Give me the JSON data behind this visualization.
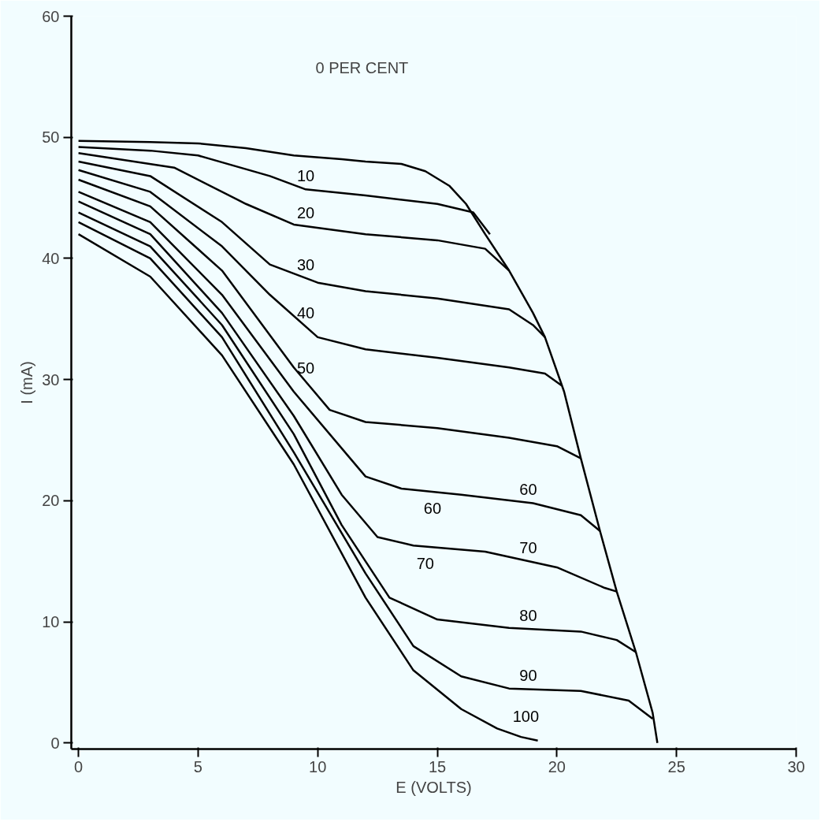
{
  "chart_data": {
    "type": "line",
    "xlabel": "E (VOLTS)",
    "ylabel": "I (mA)",
    "xlim": [
      -0.3,
      30
    ],
    "ylim": [
      -0.5,
      60
    ],
    "xticks": [
      0,
      5,
      10,
      15,
      20,
      25,
      30
    ],
    "yticks": [
      0,
      10,
      20,
      30,
      40,
      50,
      60
    ],
    "grid": false,
    "marker": "none",
    "line_style": "solid",
    "series": [
      {
        "color": "#000000",
        "x": [
          0,
          3,
          5,
          7,
          9,
          11,
          12,
          13.5,
          14.5,
          15.5,
          16.2,
          17,
          18,
          19,
          19.5,
          20.3,
          21,
          21.8,
          22.5,
          23.3,
          24,
          24.2
        ],
        "values": [
          49.7,
          49.6,
          49.5,
          49.1,
          48.5,
          48.2,
          48,
          47.8,
          47.2,
          46,
          44.5,
          42,
          39,
          35.5,
          33.5,
          29,
          23.5,
          17.5,
          12.5,
          7.5,
          2.5,
          0
        ]
      },
      {
        "name": "10",
        "color": "#000000",
        "x": [
          0,
          3,
          5,
          8,
          9.5,
          12,
          15,
          16.5,
          17.2
        ],
        "values": [
          49.2,
          48.9,
          48.5,
          46.8,
          45.7,
          45.2,
          44.5,
          43.8,
          42
        ]
      },
      {
        "name": "20",
        "color": "#000000",
        "x": [
          0,
          4,
          7,
          9,
          12,
          15,
          17,
          18
        ],
        "values": [
          48.7,
          47.5,
          44.5,
          42.8,
          42,
          41.5,
          40.8,
          39
        ]
      },
      {
        "name": "30",
        "color": "#000000",
        "x": [
          0,
          3,
          6,
          8,
          10,
          12,
          15,
          18,
          19,
          19.5
        ],
        "values": [
          48,
          46.8,
          43,
          39.5,
          38,
          37.3,
          36.7,
          35.8,
          34.5,
          33.5
        ]
      },
      {
        "name": "40",
        "color": "#000000",
        "x": [
          0,
          3,
          6,
          8,
          10,
          12,
          15,
          18,
          19.5,
          20.2
        ],
        "values": [
          47.3,
          45.5,
          41,
          37,
          33.5,
          32.5,
          31.8,
          31,
          30.5,
          29.5
        ]
      },
      {
        "name": "50",
        "color": "#000000",
        "x": [
          0,
          3,
          6,
          9,
          10.5,
          12,
          15,
          18,
          20,
          21
        ],
        "values": [
          46.5,
          44.3,
          39,
          31,
          27.5,
          26.5,
          26,
          25.2,
          24.5,
          23.5
        ]
      },
      {
        "name": "60",
        "color": "#000000",
        "x": [
          0,
          3,
          6,
          9,
          12,
          13.5,
          16,
          19,
          21,
          21.8
        ],
        "values": [
          45.5,
          43,
          37,
          29,
          22,
          21,
          20.5,
          19.8,
          18.8,
          17.5
        ]
      },
      {
        "name": "70",
        "color": "#000000",
        "x": [
          0,
          3,
          6,
          9,
          11,
          12.5,
          14,
          17,
          20,
          22,
          22.5
        ],
        "values": [
          44.7,
          42,
          35.5,
          27,
          20.5,
          17,
          16.3,
          15.8,
          14.5,
          12.8,
          12.5
        ]
      },
      {
        "name": "80",
        "color": "#000000",
        "x": [
          0,
          3,
          6,
          9,
          11,
          13,
          15,
          18,
          21,
          22.5,
          23.3
        ],
        "values": [
          43.8,
          41,
          34.5,
          25.5,
          18,
          12,
          10.2,
          9.5,
          9.2,
          8.5,
          7.5
        ]
      },
      {
        "name": "90",
        "color": "#000000",
        "x": [
          0,
          3,
          6,
          9,
          12,
          14,
          16,
          18,
          21,
          23,
          24
        ],
        "values": [
          43,
          40,
          33.5,
          24,
          14,
          8,
          5.5,
          4.5,
          4.3,
          3.5,
          2
        ]
      },
      {
        "name": "100",
        "color": "#000000",
        "x": [
          0,
          3,
          6,
          9,
          12,
          14,
          16,
          17.5,
          18.5,
          19.2
        ],
        "values": [
          42,
          38.5,
          32,
          23,
          12,
          6,
          2.8,
          1.2,
          0.5,
          0.2
        ]
      }
    ],
    "annotations": [
      "0 PER CENT"
    ]
  }
}
